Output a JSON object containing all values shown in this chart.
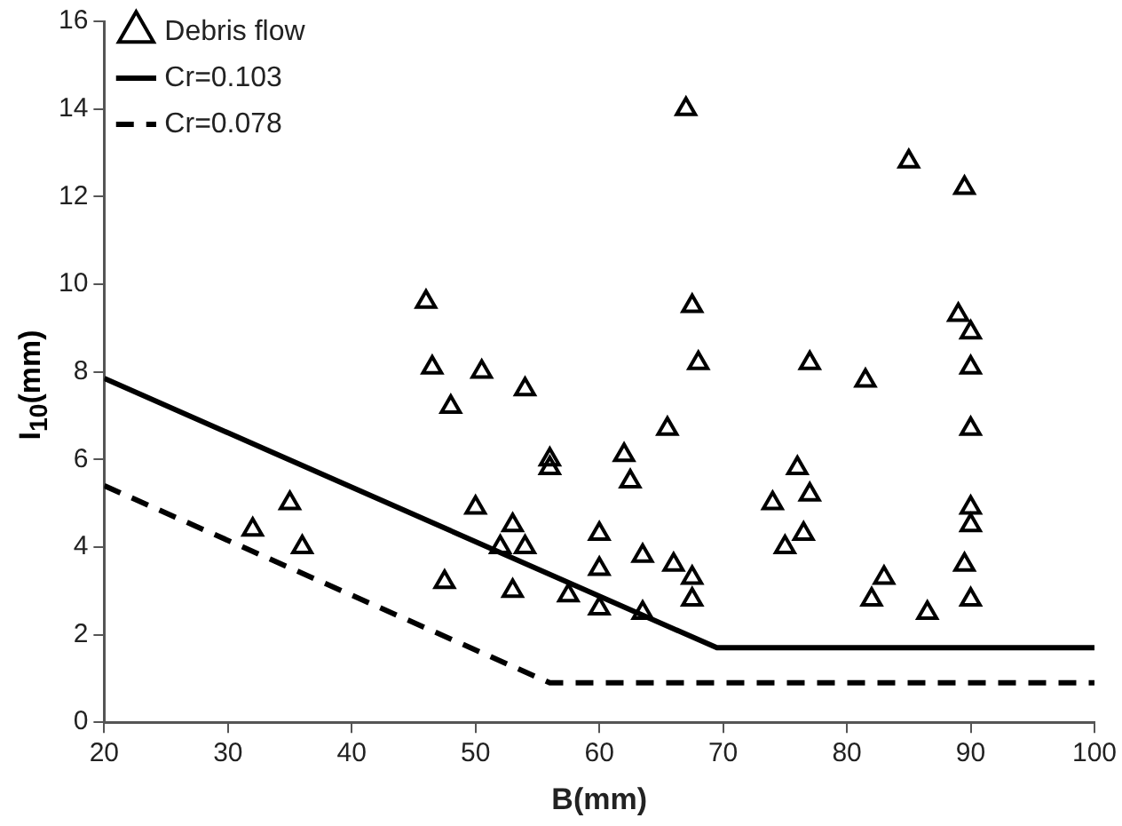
{
  "chart_data": {
    "type": "scatter",
    "xlabel": "B(mm)",
    "ylabel": "I$_{10}$(mm)",
    "xlim": [
      20,
      100
    ],
    "xticks": [
      20,
      30,
      40,
      50,
      60,
      70,
      80,
      90,
      100
    ],
    "ylim": [
      0,
      16
    ],
    "yticks": [
      0,
      2,
      4,
      6,
      8,
      10,
      12,
      14,
      16
    ],
    "grid": false,
    "legend": "top left",
    "marker": "triangle",
    "series": [
      {
        "name": "Debris flow",
        "color": "#000000",
        "x": [
          32,
          35,
          36,
          46,
          46.5,
          47.5,
          48,
          50,
          50.5,
          52,
          53,
          53,
          54,
          54,
          56,
          56,
          57.5,
          60,
          60,
          60,
          62,
          62.5,
          63.5,
          63.5,
          65.5,
          66,
          67,
          67.5,
          68,
          67.5,
          67.5,
          74,
          75,
          76,
          76.5,
          77,
          77,
          81.5,
          82,
          83,
          85,
          86.5,
          89,
          89.5,
          90,
          90,
          90,
          90,
          90,
          89.5,
          90
        ],
        "values": [
          4.4,
          5,
          4,
          9.6,
          8.1,
          3.2,
          7.2,
          4.9,
          8,
          4,
          4.5,
          3,
          7.6,
          4,
          6,
          5.8,
          2.9,
          4.3,
          3.5,
          2.6,
          6.1,
          5.5,
          3.8,
          2.5,
          6.7,
          3.6,
          14,
          9.5,
          8.2,
          3.3,
          2.8,
          5,
          4,
          5.8,
          4.3,
          5.2,
          8.2,
          7.8,
          2.8,
          3.3,
          12.8,
          2.5,
          9.3,
          12.2,
          8.9,
          8.1,
          6.7,
          4.9,
          4.5,
          3.6,
          2.8
        ]
      },
      {
        "name": "Cr=0.103",
        "type": "line",
        "color": "#000000",
        "line_style": "solid",
        "marker": "none",
        "x": [
          20,
          69.5,
          100
        ],
        "values": [
          7.85,
          1.7,
          1.7
        ]
      },
      {
        "name": "Cr=0.078",
        "type": "line",
        "color": "#000000",
        "line_style": "dashed",
        "marker": "none",
        "x": [
          20,
          56,
          100
        ],
        "values": [
          5.4,
          0.9,
          0.9
        ]
      }
    ]
  }
}
